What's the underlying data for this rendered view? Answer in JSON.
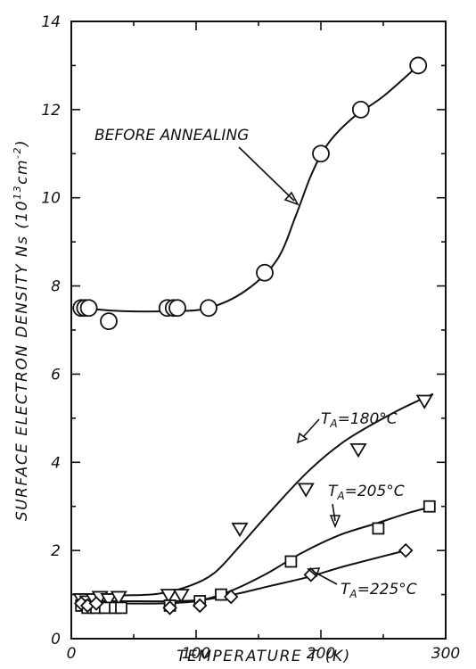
{
  "chart_data": {
    "type": "scatter",
    "title": "",
    "xlabel": "TEMPERATURE T (K)",
    "ylabel_main": "SURFACE ELECTRON DENSITY Ns (10",
    "ylabel_sup1": "13",
    "ylabel_mid": "cm",
    "ylabel_sup2": "-2",
    "ylabel_end": ")",
    "xlim": [
      0,
      300
    ],
    "ylim": [
      0,
      14
    ],
    "x_ticks": [
      0,
      100,
      200,
      300
    ],
    "y_ticks": [
      0,
      2,
      4,
      6,
      8,
      10,
      12,
      14
    ],
    "grid": false,
    "series": [
      {
        "name": "BEFORE ANNEALING",
        "marker": "circle",
        "points": [
          [
            8,
            7.5
          ],
          [
            11,
            7.5
          ],
          [
            14,
            7.5
          ],
          [
            30,
            7.2
          ],
          [
            77,
            7.5
          ],
          [
            82,
            7.5
          ],
          [
            85,
            7.5
          ],
          [
            110,
            7.5
          ],
          [
            155,
            8.3
          ],
          [
            200,
            11.0
          ],
          [
            232,
            12.0
          ],
          [
            278,
            13.0
          ]
        ],
        "curve": [
          [
            8,
            7.5
          ],
          [
            40,
            7.43
          ],
          [
            80,
            7.43
          ],
          [
            110,
            7.5
          ],
          [
            140,
            7.9
          ],
          [
            165,
            8.6
          ],
          [
            180,
            9.6
          ],
          [
            192,
            10.5
          ],
          [
            205,
            11.2
          ],
          [
            225,
            11.8
          ],
          [
            250,
            12.3
          ],
          [
            278,
            13.0
          ]
        ]
      },
      {
        "name": "180°C",
        "label_prefix": "T",
        "label_sub": "A",
        "label_value": "=180°C",
        "marker": "triangle-down",
        "points": [
          [
            8,
            0.9
          ],
          [
            13,
            0.85
          ],
          [
            18,
            0.9
          ],
          [
            23,
            0.95
          ],
          [
            30,
            0.9
          ],
          [
            38,
            0.95
          ],
          [
            78,
            1.0
          ],
          [
            88,
            1.0
          ],
          [
            135,
            2.5
          ],
          [
            188,
            3.4
          ],
          [
            230,
            4.3
          ],
          [
            283,
            5.4
          ]
        ],
        "curve": [
          [
            8,
            0.97
          ],
          [
            40,
            0.98
          ],
          [
            70,
            1.02
          ],
          [
            95,
            1.2
          ],
          [
            115,
            1.5
          ],
          [
            135,
            2.1
          ],
          [
            160,
            2.9
          ],
          [
            190,
            3.8
          ],
          [
            220,
            4.5
          ],
          [
            260,
            5.15
          ],
          [
            290,
            5.55
          ]
        ]
      },
      {
        "name": "205°C",
        "label_prefix": "T",
        "label_sub": "A",
        "label_value": "=205°C",
        "marker": "square",
        "points": [
          [
            8,
            0.75
          ],
          [
            13,
            0.7
          ],
          [
            20,
            0.7
          ],
          [
            27,
            0.7
          ],
          [
            35,
            0.7
          ],
          [
            40,
            0.7
          ],
          [
            79,
            0.75
          ],
          [
            103,
            0.85
          ],
          [
            120,
            1.0
          ],
          [
            176,
            1.75
          ],
          [
            246,
            2.5
          ],
          [
            287,
            3.0
          ]
        ],
        "curve": [
          [
            8,
            0.8
          ],
          [
            40,
            0.8
          ],
          [
            70,
            0.8
          ],
          [
            100,
            0.85
          ],
          [
            125,
            1.05
          ],
          [
            155,
            1.45
          ],
          [
            185,
            1.95
          ],
          [
            215,
            2.35
          ],
          [
            245,
            2.62
          ],
          [
            270,
            2.85
          ],
          [
            290,
            3.0
          ]
        ]
      },
      {
        "name": "225°C",
        "label_prefix": "T",
        "label_sub": "A",
        "label_value": "=225°C",
        "marker": "diamond",
        "points": [
          [
            8,
            0.8
          ],
          [
            13,
            0.75
          ],
          [
            20,
            0.8
          ],
          [
            79,
            0.7
          ],
          [
            103,
            0.75
          ],
          [
            128,
            0.95
          ],
          [
            192,
            1.45
          ],
          [
            268,
            2.0
          ]
        ],
        "curve": [
          [
            8,
            0.85
          ],
          [
            40,
            0.85
          ],
          [
            80,
            0.85
          ],
          [
            105,
            0.88
          ],
          [
            130,
            1.0
          ],
          [
            160,
            1.2
          ],
          [
            190,
            1.4
          ],
          [
            220,
            1.65
          ],
          [
            268,
            2.0
          ]
        ]
      }
    ]
  }
}
